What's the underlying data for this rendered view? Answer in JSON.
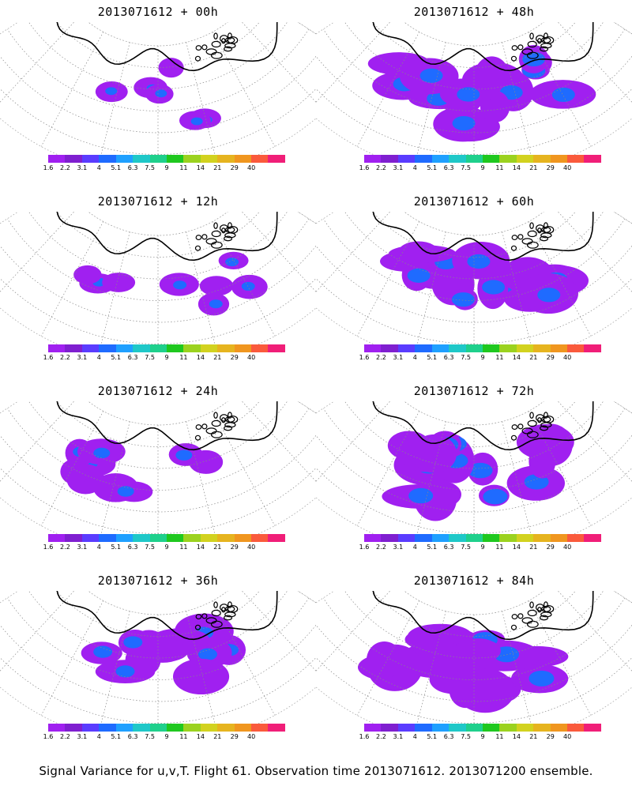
{
  "panels": [
    {
      "title": "2013071612 + 00h",
      "spread": 0.15,
      "seed": 1
    },
    {
      "title": "2013071612 + 48h",
      "spread": 0.85,
      "seed": 2
    },
    {
      "title": "2013071612 + 12h",
      "spread": 0.25,
      "seed": 3
    },
    {
      "title": "2013071612 + 60h",
      "spread": 0.85,
      "seed": 4
    },
    {
      "title": "2013071612 + 24h",
      "spread": 0.45,
      "seed": 5
    },
    {
      "title": "2013071612 + 72h",
      "spread": 0.95,
      "seed": 6
    },
    {
      "title": "2013071612 + 36h",
      "spread": 0.6,
      "seed": 7
    },
    {
      "title": "2013071612 + 84h",
      "spread": 1.0,
      "seed": 8
    }
  ],
  "colorbar": {
    "labels": [
      "1.6",
      "2.2",
      "3.1",
      "4",
      "5.1",
      "6.3",
      "7.5",
      "9",
      "11",
      "14",
      "21",
      "29",
      "40"
    ],
    "colors": [
      "#a020f0",
      "#7f1fd0",
      "#5a3cff",
      "#1f6bff",
      "#1fa0ff",
      "#1fc8c8",
      "#1fd08c",
      "#1fc81f",
      "#9bd21f",
      "#d2d21f",
      "#e6b41f",
      "#f0961f",
      "#fa5a3c",
      "#f01e78"
    ]
  },
  "caption": "Signal Variance for u,v,T. Flight 61. Observation time 2013071612. 2013071200 ensemble.",
  "legend_labels": {
    "low": "1.6",
    "high": "40"
  }
}
